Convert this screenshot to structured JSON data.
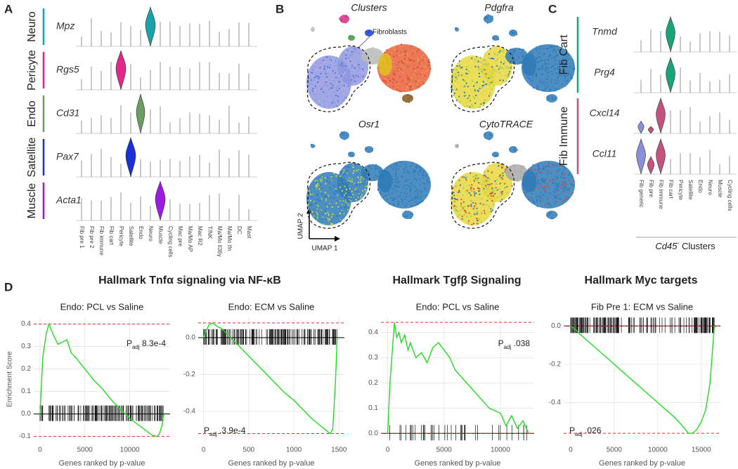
{
  "panel_a": {
    "label": "A",
    "rows": [
      {
        "group": "Neuro",
        "gene": "Mpz",
        "color": "#17a3a8"
      },
      {
        "group": "Pericyte",
        "gene": "Rgs5",
        "color": "#e0288a"
      },
      {
        "group": "Endo",
        "gene": "Cd31",
        "color": "#6a9e5f"
      },
      {
        "group": "Satellite",
        "gene": "Pax7",
        "color": "#1b2fd6"
      },
      {
        "group": "Muscle",
        "gene": "Acta1",
        "color": "#9b1be0"
      }
    ],
    "categories": [
      "Fib pre 1",
      "Fib pre 2",
      "Fib immune",
      "Fib cart",
      "Pericyte",
      "Satellite",
      "Endo",
      "Neuro",
      "Muscle",
      "Cycling cells",
      "Mac pre",
      "Ma/Mo AP",
      "Mac R2",
      "T/NK",
      "Ma/Mo Il36γ",
      "Ma/Mo Ifn",
      "DC",
      "Mast"
    ]
  },
  "panel_b": {
    "label": "B",
    "titles": [
      "Clusters",
      "Pdgfra",
      "Osr1",
      "CytoTRACE"
    ],
    "annotation": "Fibroblasts",
    "umap_x": "UMAP 1",
    "umap_y": "UMAP 2"
  },
  "panel_c": {
    "label": "C",
    "groups": [
      {
        "name": "Fib Cart",
        "color": "#1aa37a",
        "genes": [
          "Tnmd",
          "Prg4"
        ]
      },
      {
        "name": "Fib Immune",
        "color": "#c2527f",
        "genes": [
          "Cxcl14",
          "Ccl11"
        ]
      }
    ],
    "categories": [
      "Fib generic",
      "Fib pre",
      "Fib immune",
      "Fib cart",
      "Pericyte",
      "Satellite",
      "Endo",
      "Neuro",
      "Muscle",
      "Cycling cells"
    ],
    "xlabel": {
      "main": "Cd45",
      "sup": "-",
      "rest": " Clusters"
    }
  },
  "panel_d": {
    "label": "D",
    "hallmarks": [
      "Hallmark Tnfα signaling via NF-κB",
      "Hallmark Tgfβ Signaling",
      "Hallmark Myc targets"
    ]
  },
  "chart_data": [
    {
      "type": "line",
      "title": "Endo: PCL vs Saline",
      "ylabel": "Enrichment Score",
      "xlabel": "Genes ranked by p-value",
      "color": "#22dd22",
      "padj": {
        "p": "P",
        "sub": "adj",
        "value": " 8.3e-4"
      },
      "padj_corner": "top-right",
      "x": [
        0,
        300,
        700,
        1000,
        1500,
        2000,
        2500,
        3000,
        3500,
        4000,
        5000,
        6000,
        7000,
        8000,
        9000,
        10000,
        11000,
        12000,
        12500,
        13000,
        13300,
        13600,
        13800
      ],
      "values": [
        0,
        0.25,
        0.36,
        0.4,
        0.35,
        0.31,
        0.32,
        0.33,
        0.27,
        0.25,
        0.2,
        0.15,
        0.11,
        0.06,
        0.02,
        -0.02,
        -0.05,
        -0.08,
        -0.095,
        -0.1,
        -0.09,
        -0.05,
        0
      ],
      "xlim": [
        -700,
        14500
      ],
      "xticks": [
        0,
        5000,
        10000
      ],
      "ylim": [
        -0.12,
        0.43
      ],
      "yticks": [
        -0.1,
        {
          "value": 0,
          "label": "0.0"
        },
        0.1,
        0.2,
        0.3,
        0.4
      ],
      "grid": true
    },
    {
      "type": "line",
      "title": "Endo: ECM vs Saline",
      "xlabel": "Genes ranked by p-value",
      "color": "#22dd22",
      "padj": {
        "p": "P",
        "sub": "adj",
        "value": " .3.9e-4"
      },
      "padj_corner": "bottom-left",
      "x": [
        0,
        30,
        60,
        100,
        150,
        200,
        300,
        400,
        500,
        600,
        700,
        800,
        900,
        1000,
        1100,
        1200,
        1300,
        1350,
        1400,
        1430,
        1460,
        1480
      ],
      "values": [
        0,
        0.04,
        0.07,
        0.08,
        0.06,
        0.05,
        0,
        -0.05,
        -0.1,
        -0.15,
        -0.2,
        -0.25,
        -0.3,
        -0.34,
        -0.39,
        -0.44,
        -0.48,
        -0.5,
        -0.52,
        -0.5,
        -0.25,
        0
      ],
      "xlim": [
        -60,
        1560
      ],
      "xticks": [
        0,
        500,
        1000,
        1500
      ],
      "ylim": [
        -0.56,
        0.11
      ],
      "yticks": [
        -0.4,
        -0.2,
        {
          "value": 0,
          "label": "0.0"
        }
      ],
      "grid": true
    },
    {
      "type": "line",
      "title": "Endo: PCL vs Saline",
      "xlabel": "Genes ranked by p-value",
      "color": "#22dd22",
      "padj": {
        "p": "P",
        "sub": "adj",
        "value": " .038"
      },
      "padj_corner": "top-right",
      "x": [
        0,
        200,
        400,
        600,
        800,
        1000,
        1200,
        1500,
        1800,
        2000,
        2500,
        3000,
        3500,
        4000,
        4500,
        5000,
        5500,
        6000,
        7000,
        8000,
        9000,
        10000,
        10500,
        11000,
        11500,
        12000,
        12500
      ],
      "values": [
        0,
        0.2,
        0.32,
        0.44,
        0.38,
        0.4,
        0.36,
        0.39,
        0.33,
        0.36,
        0.3,
        0.32,
        0.28,
        0.34,
        0.36,
        0.33,
        0.3,
        0.25,
        0.2,
        0.15,
        0.1,
        0.08,
        0.03,
        0.07,
        0.02,
        0.05,
        0
      ],
      "xlim": [
        -600,
        13000
      ],
      "xticks": [
        0,
        5000,
        10000
      ],
      "ylim": [
        -0.03,
        0.46
      ],
      "yticks": [
        {
          "value": 0,
          "label": "0.0"
        },
        0.1,
        0.2,
        0.3,
        0.4
      ],
      "grid": true
    },
    {
      "type": "line",
      "title": "Fib Pre 1: ECM vs Saline",
      "xlabel": "Genes ranked by p-value",
      "color": "#22dd22",
      "padj": {
        "p": "P",
        "sub": "adj",
        "value": " .026"
      },
      "padj_corner": "bottom-left",
      "x": [
        0,
        300,
        600,
        1000,
        2000,
        3000,
        4000,
        5000,
        6000,
        7000,
        8000,
        9000,
        10000,
        11000,
        12000,
        13000,
        13500,
        14000,
        14500,
        15000,
        15500,
        16000,
        16300,
        16500
      ],
      "values": [
        0,
        -0.01,
        -0.02,
        -0.04,
        -0.08,
        -0.12,
        -0.16,
        -0.2,
        -0.24,
        -0.28,
        -0.32,
        -0.36,
        -0.4,
        -0.44,
        -0.48,
        -0.53,
        -0.56,
        -0.56,
        -0.54,
        -0.5,
        -0.44,
        -0.3,
        -0.12,
        0
      ],
      "xlim": [
        -800,
        17200
      ],
      "xticks": [
        0,
        5000,
        10000,
        15000
      ],
      "ylim": [
        -0.6,
        0.045
      ],
      "yticks": [
        -0.4,
        -0.2,
        {
          "value": 0,
          "label": "0.0"
        }
      ],
      "grid": true
    }
  ]
}
